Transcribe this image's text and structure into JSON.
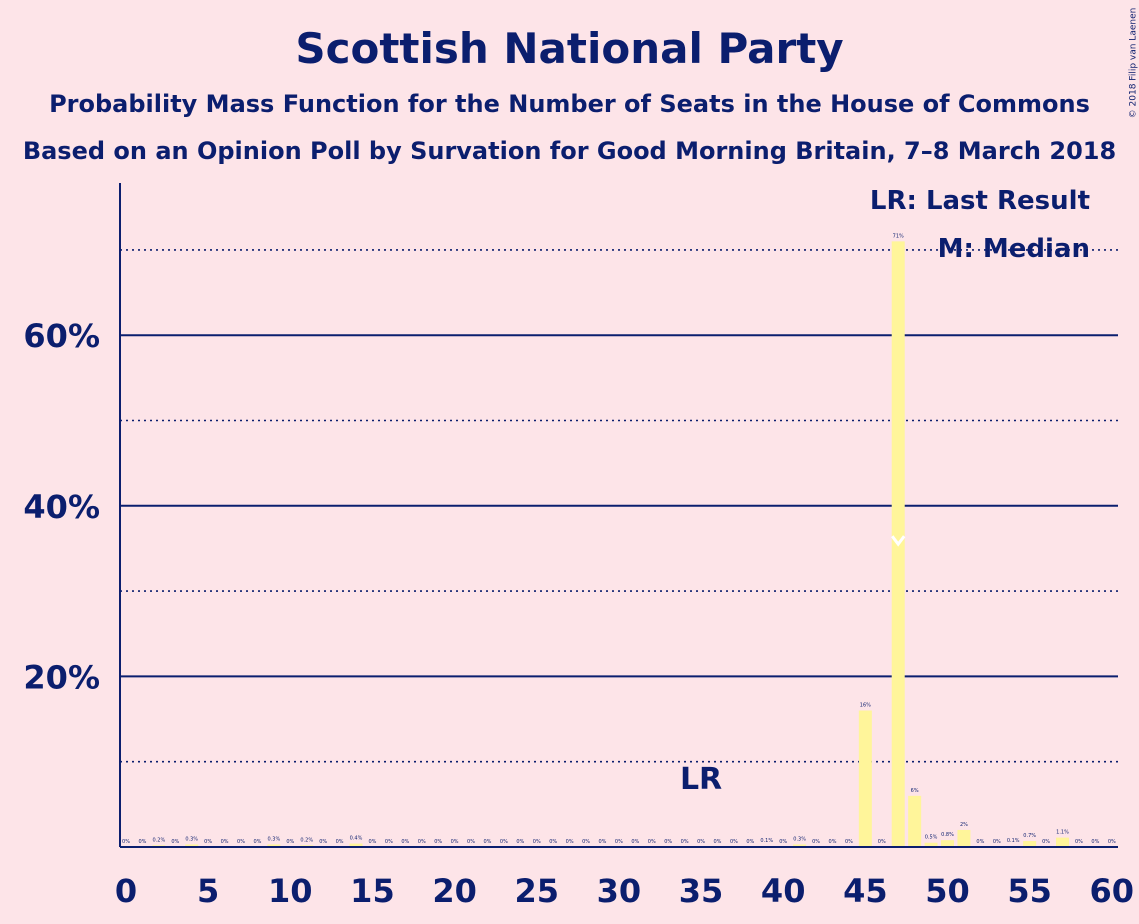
{
  "title": "Scottish National Party",
  "subtitle": "Probability Mass Function for the Number of Seats in the House of Commons",
  "source": "Based on an Opinion Poll by Survation for Good Morning Britain, 7–8 March 2018",
  "copyright": "© 2018 Filip van Laenen",
  "colors": {
    "background": "#fde4e8",
    "text": "#0b1e6e",
    "bar": "#fff59a",
    "median_marker": "#ffffff"
  },
  "chart_data": {
    "type": "bar",
    "x": [
      0,
      1,
      2,
      3,
      4,
      5,
      6,
      7,
      8,
      9,
      10,
      11,
      12,
      13,
      14,
      15,
      16,
      17,
      18,
      19,
      20,
      21,
      22,
      23,
      24,
      25,
      26,
      27,
      28,
      29,
      30,
      31,
      32,
      33,
      34,
      35,
      36,
      37,
      38,
      39,
      40,
      41,
      42,
      43,
      44,
      45,
      46,
      47,
      48,
      49,
      50,
      51,
      52,
      53,
      54,
      55,
      56,
      57,
      58,
      59,
      60
    ],
    "values": [
      0,
      0,
      0.2,
      0,
      0.3,
      0,
      0,
      0,
      0,
      0.3,
      0,
      0.2,
      0,
      0,
      0.4,
      0,
      0,
      0,
      0,
      0,
      0,
      0,
      0,
      0,
      0,
      0,
      0,
      0,
      0,
      0,
      0,
      0,
      0,
      0,
      0,
      0,
      0,
      0,
      0,
      0.1,
      0,
      0.3,
      0,
      0,
      0,
      16,
      0,
      71,
      6,
      0.5,
      0.8,
      2,
      0,
      0,
      0.1,
      0.7,
      0,
      1.1,
      0,
      0,
      0
    ],
    "bar_labels": [
      "0%",
      "0%",
      "0.2%",
      "0%",
      "0.3%",
      "0%",
      "0%",
      "0%",
      "0%",
      "0.3%",
      "0%",
      "0.2%",
      "0%",
      "0%",
      "0.4%",
      "0%",
      "0%",
      "0%",
      "0%",
      "0%",
      "0%",
      "0%",
      "0%",
      "0%",
      "0%",
      "0%",
      "0%",
      "0%",
      "0%",
      "0%",
      "0%",
      "0%",
      "0%",
      "0%",
      "0%",
      "0%",
      "0%",
      "0%",
      "0%",
      "0.1%",
      "0%",
      "0.3%",
      "0%",
      "0%",
      "0%",
      "16%",
      "0%",
      "71%",
      "6%",
      "0.5%",
      "0.8%",
      "2%",
      "0%",
      "0%",
      "0.1%",
      "0.7%",
      "0%",
      "1.1%",
      "0%",
      "0%",
      "0%"
    ],
    "xticks": [
      0,
      5,
      10,
      15,
      20,
      25,
      30,
      35,
      40,
      45,
      50,
      55,
      60
    ],
    "yticks": [
      20,
      40,
      60
    ],
    "ytick_labels": [
      "20%",
      "40%",
      "60%"
    ],
    "ylim": [
      0,
      77
    ],
    "xlim": [
      0,
      60
    ],
    "grid": {
      "solid": [
        20,
        40,
        60
      ],
      "dotted": [
        10,
        30,
        50,
        70
      ]
    },
    "last_result": {
      "seat": 35,
      "label": "LR"
    },
    "median": {
      "seat": 47,
      "label": "M"
    },
    "legend": {
      "position": "top-right",
      "items": [
        "LR: Last Result",
        "M: Median"
      ]
    }
  }
}
